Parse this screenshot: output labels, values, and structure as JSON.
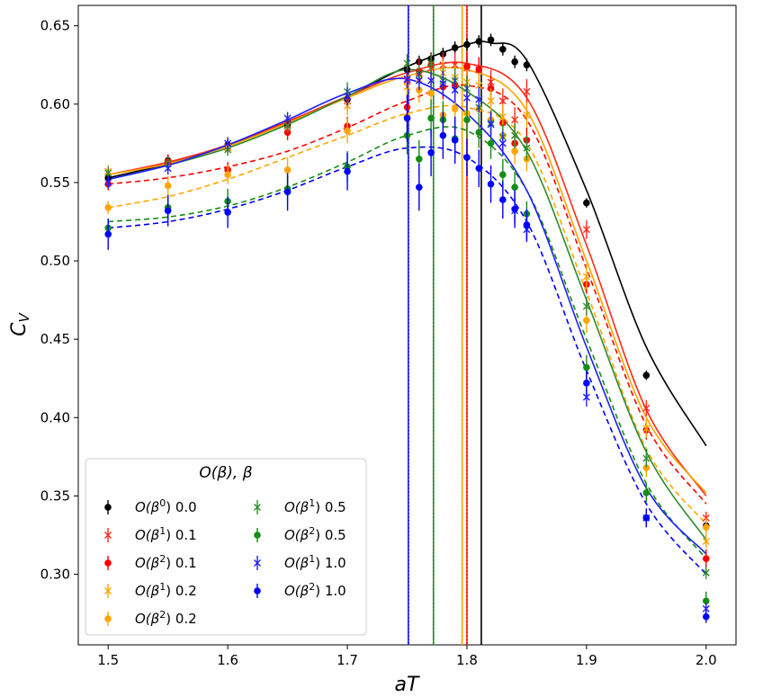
{
  "chart_data": {
    "type": "line",
    "xlabel": "aT",
    "ylabel": "C_V",
    "xlim": [
      1.475,
      2.025
    ],
    "ylim": [
      0.255,
      0.663
    ],
    "xticks": [
      1.5,
      1.6,
      1.7,
      1.8,
      1.9,
      2.0
    ],
    "xtick_labels": [
      "1.5",
      "1.6",
      "1.7",
      "1.8",
      "1.9",
      "2.0"
    ],
    "yticks": [
      0.3,
      0.35,
      0.4,
      0.45,
      0.5,
      0.55,
      0.6,
      0.65
    ],
    "ytick_labels": [
      "0.30",
      "0.35",
      "0.40",
      "0.45",
      "0.50",
      "0.55",
      "0.60",
      "0.65"
    ],
    "legend": {
      "title": "O(β), β",
      "position": "lower-left",
      "columns": 2
    },
    "series": [
      {
        "name": "O(β⁰) 0.0",
        "order_label": "O(β",
        "order_sup": "0",
        "beta_label": "0.0",
        "color": "#000000",
        "marker": "dot",
        "line": "solid",
        "peak_x": 1.812,
        "x": [
          1.5,
          1.55,
          1.6,
          1.65,
          1.7,
          1.75,
          1.76,
          1.77,
          1.78,
          1.79,
          1.8,
          1.81,
          1.82,
          1.83,
          1.84,
          1.85,
          1.9,
          1.95,
          2.0
        ],
        "y": [
          0.553,
          0.564,
          0.574,
          0.587,
          0.603,
          0.622,
          0.627,
          0.629,
          0.632,
          0.636,
          0.638,
          0.64,
          0.641,
          0.635,
          0.627,
          0.625,
          0.537,
          0.427,
          0.331
        ],
        "err": [
          0.004,
          0.004,
          0.004,
          0.004,
          0.004,
          0.004,
          0.004,
          0.004,
          0.004,
          0.004,
          0.004,
          0.004,
          0.004,
          0.004,
          0.004,
          0.004,
          0.003,
          0.003,
          0.003
        ],
        "fit_x": [
          1.5,
          1.55,
          1.6,
          1.65,
          1.7,
          1.75,
          1.8,
          1.82,
          1.85,
          1.9,
          1.95,
          2.0
        ],
        "fit_y": [
          0.553,
          0.562,
          0.574,
          0.588,
          0.605,
          0.624,
          0.638,
          0.639,
          0.628,
          0.545,
          0.445,
          0.382
        ]
      },
      {
        "name": "O(β¹) 0.1",
        "order_label": "O(β",
        "order_sup": "1",
        "beta_label": "0.1",
        "color": "#ff2a1a",
        "marker": "x",
        "line": "solid",
        "peak_x": 1.8,
        "x": [
          1.5,
          1.55,
          1.6,
          1.65,
          1.7,
          1.75,
          1.76,
          1.77,
          1.78,
          1.79,
          1.8,
          1.81,
          1.82,
          1.83,
          1.84,
          1.85,
          1.9,
          1.95,
          2.0
        ],
        "y": [
          0.557,
          0.563,
          0.573,
          0.587,
          0.602,
          0.615,
          0.62,
          0.623,
          0.625,
          0.625,
          0.623,
          0.622,
          0.614,
          0.602,
          0.59,
          0.608,
          0.52,
          0.406,
          0.336
        ],
        "err": [
          0.004,
          0.004,
          0.004,
          0.004,
          0.006,
          0.006,
          0.006,
          0.006,
          0.008,
          0.008,
          0.008,
          0.008,
          0.008,
          0.008,
          0.008,
          0.008,
          0.006,
          0.005,
          0.004
        ],
        "fit_x": [
          1.5,
          1.55,
          1.6,
          1.65,
          1.7,
          1.75,
          1.8,
          1.85,
          1.9,
          1.95,
          2.0
        ],
        "fit_y": [
          0.555,
          0.563,
          0.574,
          0.589,
          0.605,
          0.62,
          0.626,
          0.604,
          0.51,
          0.405,
          0.35
        ]
      },
      {
        "name": "O(β²) 0.1",
        "order_label": "O(β",
        "order_sup": "2",
        "beta_label": "0.1",
        "color": "#ff0000",
        "marker": "dot",
        "line": "dashed",
        "peak_x": 1.8,
        "x": [
          1.5,
          1.55,
          1.6,
          1.65,
          1.7,
          1.75,
          1.76,
          1.77,
          1.78,
          1.79,
          1.8,
          1.81,
          1.82,
          1.83,
          1.84,
          1.85,
          1.9,
          1.95,
          2.0
        ],
        "y": [
          0.549,
          0.563,
          0.558,
          0.582,
          0.586,
          0.598,
          0.621,
          0.625,
          0.611,
          0.612,
          0.624,
          0.622,
          0.61,
          0.588,
          0.575,
          0.577,
          0.485,
          0.392,
          0.31
        ],
        "err": [
          0.004,
          0.005,
          0.005,
          0.005,
          0.006,
          0.008,
          0.008,
          0.008,
          0.008,
          0.008,
          0.008,
          0.008,
          0.008,
          0.008,
          0.008,
          0.008,
          0.006,
          0.006,
          0.006
        ],
        "fit_x": [
          1.5,
          1.55,
          1.6,
          1.65,
          1.7,
          1.75,
          1.8,
          1.85,
          1.9,
          1.95,
          2.0
        ],
        "fit_y": [
          0.549,
          0.553,
          0.56,
          0.57,
          0.585,
          0.602,
          0.612,
          0.59,
          0.495,
          0.395,
          0.345
        ]
      },
      {
        "name": "O(β¹) 0.2",
        "order_label": "O(β",
        "order_sup": "1",
        "beta_label": "0.2",
        "color": "#ffa500",
        "marker": "x",
        "line": "solid",
        "peak_x": 1.796,
        "x": [
          1.5,
          1.55,
          1.6,
          1.65,
          1.7,
          1.75,
          1.76,
          1.77,
          1.78,
          1.79,
          1.8,
          1.81,
          1.82,
          1.83,
          1.84,
          1.85,
          1.9,
          1.95,
          2.0
        ],
        "y": [
          0.557,
          0.562,
          0.572,
          0.586,
          0.599,
          0.611,
          0.616,
          0.615,
          0.62,
          0.617,
          0.614,
          0.612,
          0.602,
          0.592,
          0.58,
          0.593,
          0.49,
          0.393,
          0.321
        ],
        "err": [
          0.004,
          0.004,
          0.004,
          0.004,
          0.006,
          0.008,
          0.008,
          0.008,
          0.008,
          0.008,
          0.008,
          0.008,
          0.008,
          0.008,
          0.008,
          0.008,
          0.008,
          0.006,
          0.004
        ],
        "fit_x": [
          1.5,
          1.55,
          1.6,
          1.65,
          1.7,
          1.75,
          1.8,
          1.85,
          1.9,
          1.95,
          2.0
        ],
        "fit_y": [
          0.555,
          0.562,
          0.573,
          0.588,
          0.604,
          0.618,
          0.622,
          0.596,
          0.5,
          0.4,
          0.352
        ]
      },
      {
        "name": "O(β²) 0.2",
        "order_label": "O(β",
        "order_sup": "2",
        "beta_label": "0.2",
        "color": "#ffa500",
        "marker": "dot",
        "line": "dashed",
        "peak_x": 1.796,
        "x": [
          1.5,
          1.55,
          1.6,
          1.65,
          1.7,
          1.75,
          1.76,
          1.77,
          1.78,
          1.79,
          1.8,
          1.81,
          1.82,
          1.83,
          1.84,
          1.85,
          1.9,
          1.95,
          2.0
        ],
        "y": [
          0.534,
          0.548,
          0.555,
          0.558,
          0.583,
          0.592,
          0.609,
          0.607,
          0.593,
          0.597,
          0.594,
          0.597,
          0.59,
          0.58,
          0.57,
          0.565,
          0.462,
          0.368,
          0.33
        ],
        "err": [
          0.004,
          0.006,
          0.006,
          0.008,
          0.008,
          0.008,
          0.008,
          0.008,
          0.008,
          0.008,
          0.008,
          0.008,
          0.008,
          0.008,
          0.008,
          0.008,
          0.008,
          0.006,
          0.006
        ],
        "fit_x": [
          1.5,
          1.55,
          1.6,
          1.65,
          1.7,
          1.75,
          1.8,
          1.85,
          1.9,
          1.95,
          2.0
        ],
        "fit_y": [
          0.534,
          0.541,
          0.552,
          0.566,
          0.58,
          0.594,
          0.598,
          0.575,
          0.48,
          0.38,
          0.332
        ]
      },
      {
        "name": "O(β¹) 0.5",
        "order_label": "O(β",
        "order_sup": "1",
        "beta_label": "0.5",
        "color": "#2e8b2e",
        "marker": "x",
        "line": "solid",
        "peak_x": 1.772,
        "x": [
          1.5,
          1.55,
          1.6,
          1.65,
          1.7,
          1.75,
          1.76,
          1.77,
          1.78,
          1.79,
          1.8,
          1.81,
          1.82,
          1.83,
          1.84,
          1.85,
          1.9,
          1.95,
          2.0
        ],
        "y": [
          0.556,
          0.562,
          0.571,
          0.586,
          0.608,
          0.626,
          0.619,
          0.626,
          0.615,
          0.615,
          0.61,
          0.598,
          0.588,
          0.579,
          0.58,
          0.572,
          0.471,
          0.374,
          0.301
        ],
        "err": [
          0.004,
          0.004,
          0.004,
          0.004,
          0.006,
          0.006,
          0.006,
          0.006,
          0.008,
          0.008,
          0.008,
          0.008,
          0.008,
          0.008,
          0.008,
          0.008,
          0.006,
          0.006,
          0.004
        ],
        "fit_x": [
          1.5,
          1.55,
          1.6,
          1.65,
          1.7,
          1.75,
          1.8,
          1.85,
          1.9,
          1.95,
          2.0
        ],
        "fit_y": [
          0.552,
          0.561,
          0.572,
          0.587,
          0.605,
          0.622,
          0.608,
          0.57,
          0.475,
          0.378,
          0.322
        ]
      },
      {
        "name": "O(β²) 0.5",
        "order_label": "O(β",
        "order_sup": "2",
        "beta_label": "0.5",
        "color": "#168c16",
        "marker": "dot",
        "line": "dashed",
        "peak_x": 1.772,
        "x": [
          1.5,
          1.55,
          1.6,
          1.65,
          1.7,
          1.75,
          1.76,
          1.77,
          1.78,
          1.79,
          1.8,
          1.81,
          1.82,
          1.83,
          1.84,
          1.85,
          1.9,
          1.95,
          2.0
        ],
        "y": [
          0.521,
          0.534,
          0.538,
          0.546,
          0.56,
          0.58,
          0.565,
          0.591,
          0.59,
          0.578,
          0.59,
          0.582,
          0.575,
          0.555,
          0.547,
          0.53,
          0.432,
          0.352,
          0.283
        ],
        "err": [
          0.006,
          0.008,
          0.008,
          0.008,
          0.01,
          0.012,
          0.012,
          0.012,
          0.012,
          0.012,
          0.012,
          0.01,
          0.01,
          0.01,
          0.01,
          0.008,
          0.008,
          0.006,
          0.006
        ],
        "fit_x": [
          1.5,
          1.55,
          1.6,
          1.65,
          1.7,
          1.75,
          1.8,
          1.85,
          1.9,
          1.95,
          2.0
        ],
        "fit_y": [
          0.525,
          0.528,
          0.535,
          0.547,
          0.563,
          0.58,
          0.583,
          0.545,
          0.45,
          0.358,
          0.31
        ]
      },
      {
        "name": "O(β¹) 1.0",
        "order_label": "O(β",
        "order_sup": "1",
        "beta_label": "1.0",
        "color": "#1f1fff",
        "marker": "x",
        "line": "solid",
        "peak_x": 1.751,
        "x": [
          1.5,
          1.55,
          1.6,
          1.65,
          1.7,
          1.75,
          1.76,
          1.77,
          1.78,
          1.79,
          1.8,
          1.81,
          1.82,
          1.83,
          1.84,
          1.85,
          1.9,
          1.95,
          2.0
        ],
        "y": [
          0.55,
          0.559,
          0.575,
          0.591,
          0.605,
          0.616,
          0.615,
          0.615,
          0.613,
          0.609,
          0.604,
          0.603,
          0.587,
          0.575,
          0.532,
          0.52,
          0.413,
          0.336,
          0.278
        ],
        "err": [
          0.004,
          0.004,
          0.004,
          0.004,
          0.006,
          0.006,
          0.006,
          0.006,
          0.008,
          0.008,
          0.008,
          0.008,
          0.008,
          0.008,
          0.008,
          0.008,
          0.006,
          0.006,
          0.004
        ],
        "fit_x": [
          1.5,
          1.55,
          1.6,
          1.65,
          1.7,
          1.75,
          1.8,
          1.85,
          1.9,
          1.95,
          2.0
        ],
        "fit_y": [
          0.552,
          0.561,
          0.574,
          0.59,
          0.607,
          0.616,
          0.594,
          0.545,
          0.445,
          0.355,
          0.313
        ]
      },
      {
        "name": "O(β²) 1.0",
        "order_label": "O(β",
        "order_sup": "2",
        "beta_label": "1.0",
        "color": "#0000ff",
        "marker": "dot",
        "line": "dashed",
        "peak_x": 1.751,
        "x": [
          1.5,
          1.55,
          1.6,
          1.65,
          1.7,
          1.75,
          1.76,
          1.77,
          1.78,
          1.79,
          1.8,
          1.81,
          1.82,
          1.83,
          1.84,
          1.85,
          1.9,
          1.95,
          2.0
        ],
        "y": [
          0.517,
          0.532,
          0.531,
          0.544,
          0.557,
          0.591,
          0.547,
          0.569,
          0.58,
          0.577,
          0.566,
          0.559,
          0.549,
          0.539,
          0.533,
          0.523,
          0.422,
          0.336,
          0.273
        ],
        "err": [
          0.01,
          0.01,
          0.01,
          0.012,
          0.012,
          0.015,
          0.015,
          0.015,
          0.015,
          0.015,
          0.012,
          0.012,
          0.012,
          0.012,
          0.012,
          0.01,
          0.008,
          0.006,
          0.004
        ],
        "fit_x": [
          1.5,
          1.55,
          1.6,
          1.65,
          1.7,
          1.75,
          1.8,
          1.85,
          1.9,
          1.95,
          2.0
        ],
        "fit_y": [
          0.521,
          0.525,
          0.533,
          0.545,
          0.56,
          0.572,
          0.566,
          0.525,
          0.43,
          0.345,
          0.3
        ]
      }
    ]
  }
}
